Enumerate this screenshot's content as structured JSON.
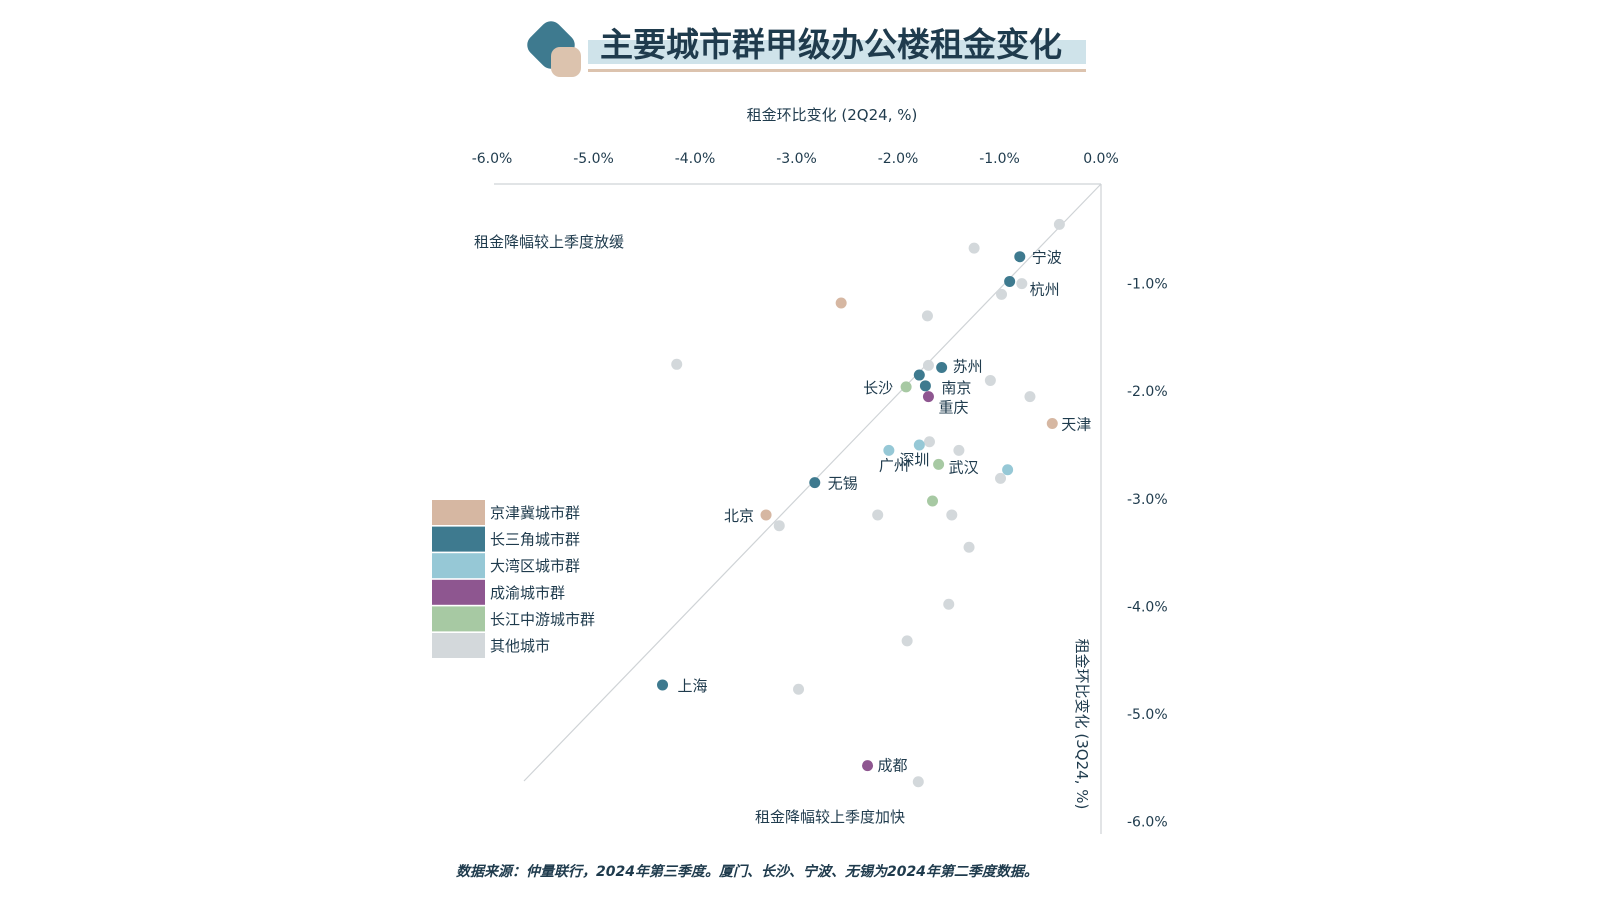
{
  "title": "主要城市群甲级办公楼租金变化",
  "source": "数据来源：仲量联行，2024年第三季度。厦门、长沙、宁波、无锡为2024年第二季度数据。",
  "colors": {
    "京津冀城市群": "#d6b7a2",
    "长三角城市群": "#3e7a8f",
    "大湾区城市群": "#96c8d6",
    "成渝城市群": "#8e5690",
    "长江中游城市群": "#a7c9a3",
    "其他城市": "#d3d8db"
  },
  "chart_data": {
    "type": "scatter",
    "xlabel": "租金环比变化 (2Q24, %)",
    "ylabel": "租金环比变化 (3Q24, %)",
    "xlim": [
      -6.0,
      0.0
    ],
    "ylim": [
      -6.0,
      0.0
    ],
    "x_ticks": [
      "-6.0%",
      "-5.0%",
      "-4.0%",
      "-3.0%",
      "-2.0%",
      "-1.0%",
      "0.0%"
    ],
    "y_ticks": [
      "-1.0%",
      "-2.0%",
      "-3.0%",
      "-4.0%",
      "-5.0%",
      "-6.0%"
    ],
    "x_axis_position": "top",
    "y_axis_position": "right",
    "reference_line": "y = x",
    "quadrant_labels": {
      "upper_left": "租金降幅较上季度放缓",
      "lower_right": "租金降幅较上季度加快"
    },
    "legend": [
      "京津冀城市群",
      "长三角城市群",
      "大湾区城市群",
      "成渝城市群",
      "长江中游城市群",
      "其他城市"
    ],
    "legend_position": "left",
    "points": [
      {
        "label": "宁波",
        "group": "长三角城市群",
        "x": -0.8,
        "y": -0.75
      },
      {
        "label": "杭州",
        "group": "长三角城市群",
        "x": -0.9,
        "y": -0.98
      },
      {
        "label": "苏州",
        "group": "长三角城市群",
        "x": -1.57,
        "y": -1.78
      },
      {
        "label": "南京",
        "group": "长三角城市群",
        "x": -1.73,
        "y": -1.95
      },
      {
        "label": "",
        "group": "长三角城市群",
        "x": -1.79,
        "y": -1.85
      },
      {
        "label": "重庆",
        "group": "成渝城市群",
        "x": -1.7,
        "y": -2.05
      },
      {
        "label": "长沙",
        "group": "长江中游城市群",
        "x": -1.92,
        "y": -1.96
      },
      {
        "label": "天津",
        "group": "京津冀城市群",
        "x": -0.48,
        "y": -2.3
      },
      {
        "label": "广州",
        "group": "大湾区城市群",
        "x": -2.09,
        "y": -2.55
      },
      {
        "label": "深圳",
        "group": "大湾区城市群",
        "x": -1.79,
        "y": -2.5
      },
      {
        "label": "武汉",
        "group": "长江中游城市群",
        "x": -1.6,
        "y": -2.68
      },
      {
        "label": "",
        "group": "大湾区城市群",
        "x": -0.92,
        "y": -2.73
      },
      {
        "label": "无锡",
        "group": "长三角城市群",
        "x": -2.82,
        "y": -2.85
      },
      {
        "label": "",
        "group": "长江中游城市群",
        "x": -1.66,
        "y": -3.02
      },
      {
        "label": "北京",
        "group": "京津冀城市群",
        "x": -3.3,
        "y": -3.15
      },
      {
        "label": "上海",
        "group": "长三角城市群",
        "x": -4.32,
        "y": -4.73
      },
      {
        "label": "成都",
        "group": "成渝城市群",
        "x": -2.3,
        "y": -5.48
      },
      {
        "label": "",
        "group": "京津冀城市群",
        "x": -2.56,
        "y": -1.18
      },
      {
        "label": "",
        "group": "其他城市",
        "x": -0.41,
        "y": -0.45
      },
      {
        "label": "",
        "group": "其他城市",
        "x": -1.25,
        "y": -0.67
      },
      {
        "label": "",
        "group": "其他城市",
        "x": -0.78,
        "y": -1.0
      },
      {
        "label": "",
        "group": "其他城市",
        "x": -0.98,
        "y": -1.1
      },
      {
        "label": "",
        "group": "其他城市",
        "x": -1.71,
        "y": -1.3
      },
      {
        "label": "",
        "group": "其他城市",
        "x": -4.18,
        "y": -1.75
      },
      {
        "label": "",
        "group": "其他城市",
        "x": -1.7,
        "y": -1.76
      },
      {
        "label": "",
        "group": "其他城市",
        "x": -1.09,
        "y": -1.9
      },
      {
        "label": "",
        "group": "其他城市",
        "x": -0.7,
        "y": -2.05
      },
      {
        "label": "",
        "group": "其他城市",
        "x": -1.69,
        "y": -2.47
      },
      {
        "label": "",
        "group": "其他城市",
        "x": -1.4,
        "y": -2.55
      },
      {
        "label": "",
        "group": "其他城市",
        "x": -0.99,
        "y": -2.81
      },
      {
        "label": "",
        "group": "其他城市",
        "x": -2.2,
        "y": -3.15
      },
      {
        "label": "",
        "group": "其他城市",
        "x": -1.47,
        "y": -3.15
      },
      {
        "label": "",
        "group": "其他城市",
        "x": -3.17,
        "y": -3.25
      },
      {
        "label": "",
        "group": "其他城市",
        "x": -1.3,
        "y": -3.45
      },
      {
        "label": "",
        "group": "其他城市",
        "x": -1.5,
        "y": -3.98
      },
      {
        "label": "",
        "group": "其他城市",
        "x": -1.91,
        "y": -4.32
      },
      {
        "label": "",
        "group": "其他城市",
        "x": -2.98,
        "y": -4.77
      },
      {
        "label": "",
        "group": "其他城市",
        "x": -1.8,
        "y": -5.63
      }
    ]
  }
}
